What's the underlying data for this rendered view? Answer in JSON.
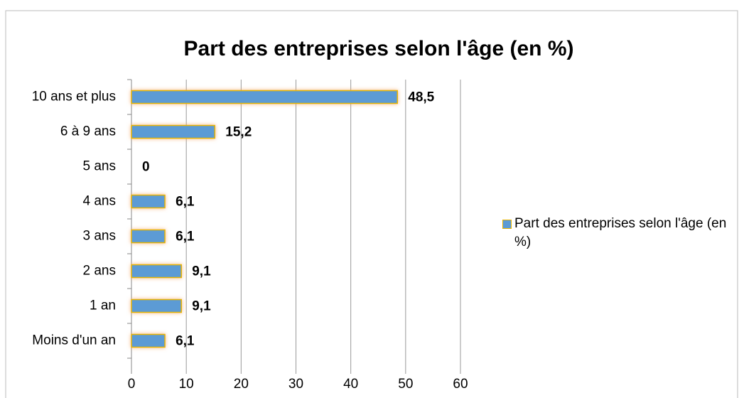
{
  "chart_data": {
    "type": "bar",
    "orientation": "horizontal",
    "title": "Part des entreprises selon l'âge (en %)",
    "categories": [
      "10 ans et plus",
      "6 à 9 ans",
      "5 ans",
      "4 ans",
      "3 ans",
      "2 ans",
      "1 an",
      "Moins d'un an"
    ],
    "series": [
      {
        "name": "Part des entreprises selon l'âge (en %)",
        "color": "#5b9bd5",
        "values": [
          48.5,
          15.2,
          0,
          6.1,
          6.1,
          9.1,
          9.1,
          6.1
        ],
        "value_labels": [
          "48,5",
          "15,2",
          "0",
          "6,1",
          "6,1",
          "9,1",
          "9,1",
          "6,1"
        ]
      }
    ],
    "xlim": [
      0,
      60
    ],
    "xticks": [
      0,
      10,
      20,
      30,
      40,
      50,
      60
    ],
    "grid": true,
    "legend": "right"
  }
}
